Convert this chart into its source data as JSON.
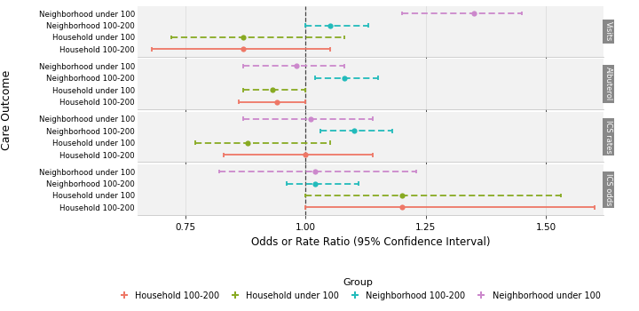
{
  "panels": [
    {
      "label": "Visits",
      "rows": [
        {
          "group": "Neighborhood under 100",
          "est": 1.35,
          "lo": 1.2,
          "hi": 1.45
        },
        {
          "group": "Neighborhood 100-200",
          "est": 1.05,
          "lo": 1.0,
          "hi": 1.13
        },
        {
          "group": "Household under 100",
          "est": 0.87,
          "lo": 0.72,
          "hi": 1.08
        },
        {
          "group": "Household 100-200",
          "est": 0.87,
          "lo": 0.68,
          "hi": 1.05
        }
      ]
    },
    {
      "label": "Albuterol",
      "rows": [
        {
          "group": "Neighborhood under 100",
          "est": 0.98,
          "lo": 0.87,
          "hi": 1.08
        },
        {
          "group": "Neighborhood 100-200",
          "est": 1.08,
          "lo": 1.02,
          "hi": 1.15
        },
        {
          "group": "Household under 100",
          "est": 0.93,
          "lo": 0.87,
          "hi": 1.0
        },
        {
          "group": "Household 100-200",
          "est": 0.94,
          "lo": 0.86,
          "hi": 1.0
        }
      ]
    },
    {
      "label": "ICS rates",
      "rows": [
        {
          "group": "Neighborhood under 100",
          "est": 1.01,
          "lo": 0.87,
          "hi": 1.14
        },
        {
          "group": "Neighborhood 100-200",
          "est": 1.1,
          "lo": 1.03,
          "hi": 1.18
        },
        {
          "group": "Household under 100",
          "est": 0.88,
          "lo": 0.77,
          "hi": 1.05
        },
        {
          "group": "Household 100-200",
          "est": 1.0,
          "lo": 0.83,
          "hi": 1.14
        }
      ]
    },
    {
      "label": "ICS odds",
      "rows": [
        {
          "group": "Neighborhood under 100",
          "est": 1.02,
          "lo": 0.82,
          "hi": 1.23
        },
        {
          "group": "Neighborhood 100-200",
          "est": 1.02,
          "lo": 0.96,
          "hi": 1.11
        },
        {
          "group": "Household under 100",
          "est": 1.2,
          "lo": 1.0,
          "hi": 1.53
        },
        {
          "group": "Household 100-200",
          "est": 1.2,
          "lo": 1.0,
          "hi": 1.6
        }
      ]
    }
  ],
  "colors": {
    "Neighborhood under 100": "#CC88CC",
    "Neighborhood 100-200": "#22BBBB",
    "Household under 100": "#88AA22",
    "Household 100-200": "#EE7766"
  },
  "dashed_groups": [
    "Neighborhood under 100",
    "Neighborhood 100-200",
    "Household under 100"
  ],
  "xlim": [
    0.65,
    1.62
  ],
  "xticks": [
    0.75,
    1.0,
    1.25,
    1.5
  ],
  "xtick_labels": [
    "0.75",
    "1.00",
    "1.25",
    "1.50"
  ],
  "xlabel": "Odds or Rate Ratio (95% Confidence Interval)",
  "ylabel": "Care Outcome",
  "ref_line": 1.0,
  "legend_groups": [
    {
      "label": "Household 100-200",
      "color": "#EE7766"
    },
    {
      "label": "Household under 100",
      "color": "#88AA22"
    },
    {
      "label": "Neighborhood 100-200",
      "color": "#22BBBB"
    },
    {
      "label": "Neighborhood under 100",
      "color": "#CC88CC"
    }
  ],
  "panel_label_bg": "#888888",
  "panel_bg": "#F2F2F2",
  "grid_color": "#DDDDDD"
}
